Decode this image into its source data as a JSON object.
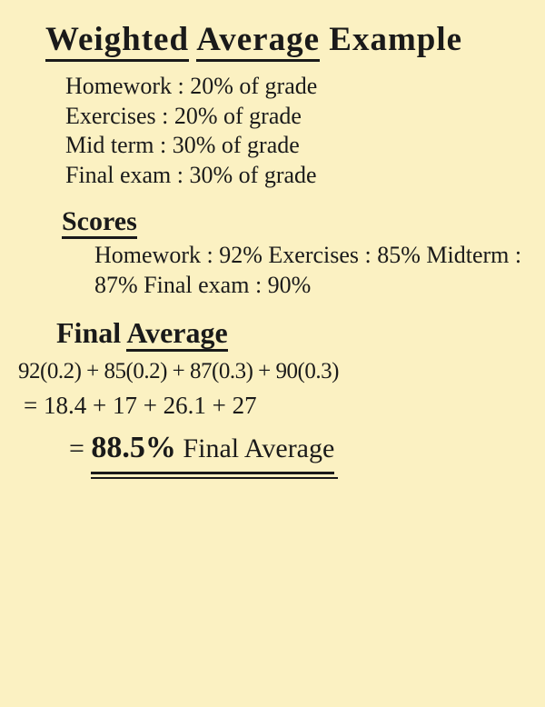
{
  "page": {
    "background_color": "#fbf1c2",
    "ink_color": "#1a1a1a",
    "font_family": "Comic Sans MS"
  },
  "title": {
    "word1": "Weighted",
    "word2": "Average",
    "word3": "Example",
    "fontsize": 37
  },
  "weights": {
    "rows": [
      {
        "label": "Homework",
        "text": "20% of grade",
        "weight": 0.2
      },
      {
        "label": "Exercises",
        "text": "20% of grade",
        "weight": 0.2
      },
      {
        "label": "Mid term",
        "text": "30% of grade",
        "weight": 0.3
      },
      {
        "label": "Final exam",
        "text": "30% of grade",
        "weight": 0.3
      }
    ],
    "fontsize": 26
  },
  "scores": {
    "heading": "Scores",
    "rows": [
      {
        "label": "Homework",
        "text": "92%",
        "value": 92
      },
      {
        "label": "Exercises",
        "text": "85%",
        "value": 85
      },
      {
        "label": "Midterm",
        "text": "87%",
        "value": 87
      },
      {
        "label": "Final exam",
        "text": "90%",
        "value": 90
      }
    ],
    "fontsize": 26
  },
  "final": {
    "heading_word1": "Final",
    "heading_word2": "Average",
    "eq_line1": "92(0.2) + 85(0.2) + 87(0.3) + 90(0.3)",
    "eq_line2": "= 18.4 + 17 + 26.1 + 27",
    "eq_eq": "=",
    "result_pct": "88.5%",
    "result_label": "Final Average",
    "terms": [
      18.4,
      17,
      26.1,
      27
    ],
    "result_value": 88.5,
    "fontsize_eq": 25,
    "fontsize_result": 34
  }
}
